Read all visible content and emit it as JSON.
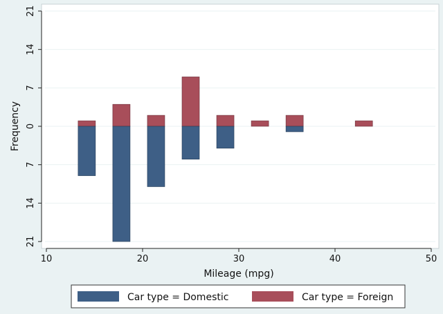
{
  "chart_data": {
    "type": "bar",
    "subtype": "mirrored-stacked-histogram",
    "xlabel": "Mileage (mpg)",
    "ylabel": "Frequency",
    "xlim": [
      10,
      50
    ],
    "ylim": [
      -21,
      21
    ],
    "x_ticks": [
      10,
      20,
      30,
      40,
      50
    ],
    "y_ticks": [
      21,
      14,
      7,
      0,
      7,
      14,
      21
    ],
    "bin_width": 1.8,
    "categories": [
      14.2,
      17.8,
      21.4,
      25,
      28.6,
      32.2,
      35.8,
      43
    ],
    "series": [
      {
        "name": "Car type = Domestic",
        "color": "#3e5f86",
        "values": [
          9,
          21,
          11,
          6,
          4,
          0,
          1,
          0
        ]
      },
      {
        "name": "Car type = Foreign",
        "color": "#a84e5a",
        "values": [
          1,
          4,
          2,
          9,
          2,
          1,
          2,
          1
        ]
      }
    ],
    "grid": true,
    "legend": "bottom"
  }
}
